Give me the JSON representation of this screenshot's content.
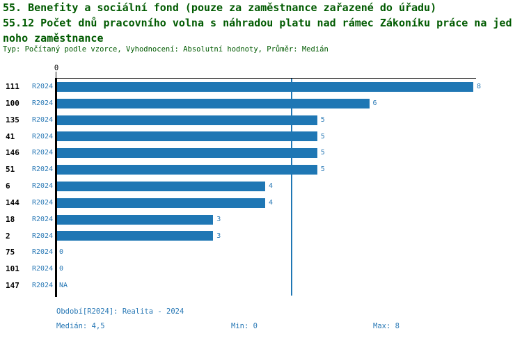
{
  "header": {
    "title_line1": "55. Benefity a sociální fond (pouze za zaměstnance zařazené do úřadu)",
    "title_line2": "55.12 Počet dnů pracovního volna s náhradou platu nad rámec Zákoníku práce na jed",
    "title_line3": "noho zaměstnance",
    "meta_line": "Typ: Počítaný podle vzorce, Vyhodnocení: Absolutní hodnoty, Průměr: Medián"
  },
  "chart_data": {
    "type": "bar",
    "orientation": "horizontal",
    "title": "55. Benefity a sociální fond (pouze za zaměstnance zařazené do úřadu)",
    "subtitle": "55.12 Počet dnů pracovního volna s náhradou platu nad rámec Zákoníku práce na jednoho zaměstnance",
    "categories": [
      "111",
      "100",
      "135",
      "41",
      "146",
      "51",
      "6",
      "144",
      "18",
      "2",
      "75",
      "101",
      "147"
    ],
    "series": [
      {
        "name": "R2024",
        "values": [
          8,
          6,
          5,
          5,
          5,
          5,
          4,
          4,
          3,
          3,
          0,
          0,
          null
        ],
        "value_labels": [
          "8",
          "6",
          "5",
          "5",
          "5",
          "5",
          "4",
          "4",
          "3",
          "3",
          "0",
          "0",
          "NA"
        ]
      }
    ],
    "xlim": [
      0,
      8
    ],
    "x_ticks": [
      {
        "value": 0,
        "label": "0"
      }
    ],
    "median_marker": 4.5,
    "grid": false,
    "legend": "none",
    "colors": {
      "bar": "#1f77b4",
      "blue_text": "#2878b5",
      "title_green": "#005a00",
      "axis": "#000000"
    }
  },
  "footer": {
    "period_line": "Období[R2024]: Realita - 2024",
    "median_label": "Medián: 4,5",
    "min_label": "Min: 0",
    "max_label": "Max: 8"
  }
}
